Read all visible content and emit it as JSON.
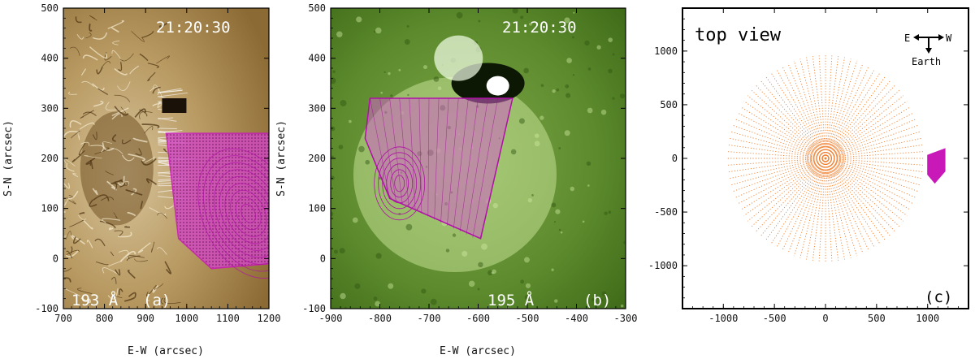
{
  "colors": {
    "panel_a_background": "#b89a62",
    "panel_b_background": "#5c8a2c",
    "model_magenta": "#c818b8",
    "orange_lines": "#f08030"
  },
  "chart_data": [
    {
      "type": "image",
      "panel": "(a)",
      "timestamp": "21:20:30",
      "wavelength": "193 Å",
      "panel_tag": "(a)",
      "xlabel": "E-W (arcsec)",
      "ylabel": "S-N (arcsec)",
      "xlim": [
        700,
        1200
      ],
      "ylim": [
        -100,
        500
      ],
      "xticks": [
        700,
        800,
        900,
        1000,
        1100,
        1200
      ],
      "yticks": [
        -100,
        0,
        100,
        200,
        300,
        400,
        500
      ],
      "model_outline": [
        [
          950,
          250
        ],
        [
          1205,
          250
        ],
        [
          1205,
          -10
        ],
        [
          1060,
          -20
        ],
        [
          980,
          40
        ]
      ]
    },
    {
      "type": "image",
      "panel": "(b)",
      "timestamp": "21:20:30",
      "wavelength": "195 Å",
      "panel_tag": "(b)",
      "xlabel": "E-W (arcsec)",
      "ylabel": "S-N (arcsec)",
      "xlim": [
        -900,
        -300
      ],
      "ylim": [
        -100,
        500
      ],
      "xticks": [
        -900,
        -800,
        -700,
        -600,
        -500,
        -400,
        -300
      ],
      "yticks": [
        -100,
        0,
        100,
        200,
        300,
        400,
        500
      ],
      "model_outline": [
        [
          -820,
          320
        ],
        [
          -530,
          320
        ],
        [
          -595,
          40
        ],
        [
          -780,
          120
        ],
        [
          -830,
          240
        ]
      ]
    },
    {
      "type": "scatter",
      "panel": "(c)",
      "title": "top view",
      "panel_tag": "(c)",
      "xlim": [
        -1400,
        1400
      ],
      "ylim": [
        -1400,
        1400
      ],
      "xticks": [
        -1000,
        -500,
        0,
        500,
        1000
      ],
      "yticks": [
        -1000,
        -500,
        0,
        500,
        1000
      ],
      "compass": {
        "east": "E",
        "west": "W",
        "earth": "Earth"
      },
      "sphere_radius": 960,
      "radial_lines": 96,
      "model_blob": [
        [
          1000,
          30
        ],
        [
          1170,
          90
        ],
        [
          1170,
          -120
        ],
        [
          1070,
          -230
        ],
        [
          1000,
          -150
        ]
      ]
    }
  ]
}
